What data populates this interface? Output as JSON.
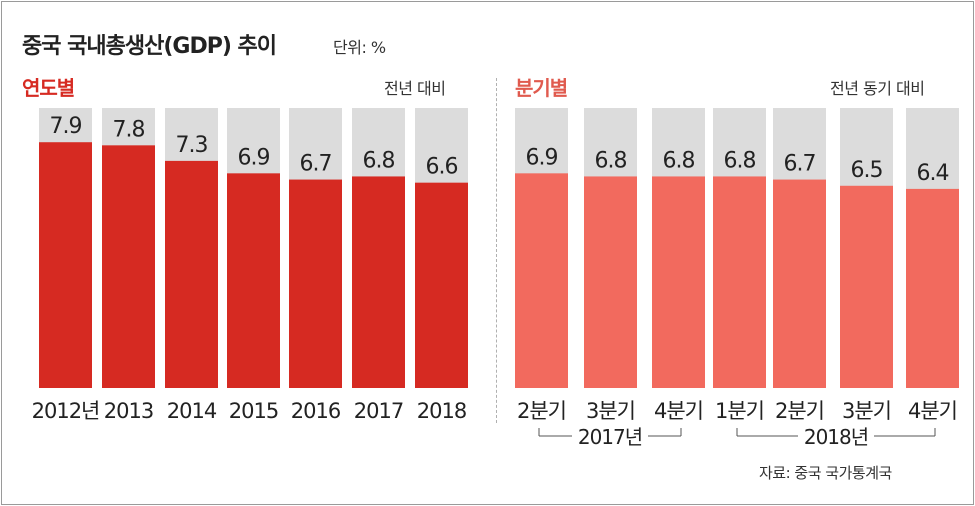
{
  "header": {
    "title": "중국 국내총생산(GDP) 추이",
    "unit": "단위: %"
  },
  "annual": {
    "label": "연도별",
    "sublabel": "전년 대비"
  },
  "quarterly": {
    "label": "분기별",
    "sublabel": "전년 동기 대비",
    "groups": [
      {
        "label": "2017년",
        "from": 0,
        "to": 2
      },
      {
        "label": "2018년",
        "from": 3,
        "to": 6
      }
    ]
  },
  "source": "자료: 중국 국가통계국",
  "colors": {
    "annual_bar": "#d62a22",
    "quarterly_bar": "#f26a5e",
    "track": "#dcdcdc"
  },
  "chart_data": [
    {
      "type": "bar",
      "title": "연도별",
      "ylabel": "전년 대비",
      "categories": [
        "2012년",
        "2013",
        "2014",
        "2015",
        "2016",
        "2017",
        "2018"
      ],
      "values": [
        7.9,
        7.8,
        7.3,
        6.9,
        6.7,
        6.8,
        6.6
      ],
      "value_labels": [
        "7.9",
        "7.8",
        "7.3",
        "6.9",
        "6.7",
        "6.8",
        "6.6"
      ],
      "ylim": [
        0,
        9
      ]
    },
    {
      "type": "bar",
      "title": "분기별",
      "ylabel": "전년 동기 대비",
      "categories": [
        "2분기",
        "3분기",
        "4분기",
        "1분기",
        "2분기",
        "3분기",
        "4분기"
      ],
      "values": [
        6.9,
        6.8,
        6.8,
        6.8,
        6.7,
        6.5,
        6.4
      ],
      "value_labels": [
        "6.9",
        "6.8",
        "6.8",
        "6.8",
        "6.7",
        "6.5",
        "6.4"
      ],
      "ylim": [
        0,
        9
      ]
    }
  ]
}
